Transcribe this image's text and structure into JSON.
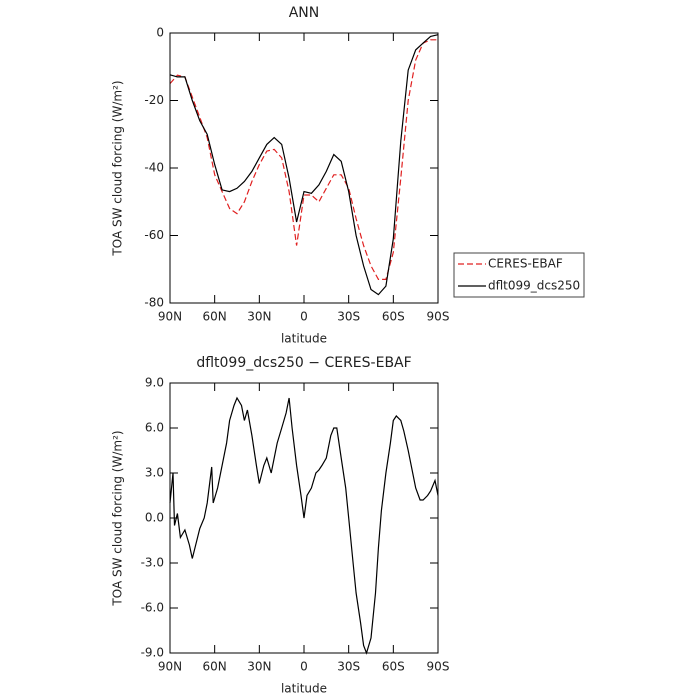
{
  "chart_data": [
    {
      "type": "line",
      "title": "ANN",
      "xlabel": "latitude",
      "ylabel": "TOA SW cloud forcing (W/m²)",
      "x": [
        90,
        85,
        80,
        75,
        70,
        65,
        60,
        55,
        50,
        45,
        40,
        35,
        30,
        25,
        20,
        15,
        10,
        5,
        0,
        -5,
        -10,
        -15,
        -20,
        -25,
        -30,
        -35,
        -40,
        -45,
        -50,
        -55,
        -60,
        -65,
        -70,
        -75,
        -80,
        -85,
        -90
      ],
      "series": [
        {
          "name": "CERES-EBAF",
          "color": "#e02020",
          "linestyle": "dashed",
          "values": [
            -15,
            -12.5,
            -13,
            -19,
            -25,
            -31,
            -42,
            -47,
            -52,
            -53.5,
            -50,
            -44,
            -39,
            -35,
            -34.5,
            -37,
            -47,
            -63,
            -48,
            -48,
            -50,
            -46,
            -42,
            -42,
            -46,
            -55,
            -63,
            -69,
            -73,
            -73,
            -65,
            -43,
            -20,
            -8,
            -3,
            -2,
            -2
          ]
        },
        {
          "name": "dflt099_dcs250",
          "color": "#000000",
          "linestyle": "solid",
          "values": [
            -12.4,
            -13,
            -13,
            -20,
            -26,
            -30,
            -39,
            -46.5,
            -47,
            -46,
            -44,
            -41,
            -37,
            -33,
            -31,
            -33,
            -43,
            -56,
            -47,
            -47.5,
            -45,
            -41,
            -36,
            -38,
            -47,
            -60,
            -69,
            -76,
            -77.5,
            -75,
            -61,
            -32,
            -11,
            -5,
            -3,
            -1,
            -0.5
          ]
        }
      ],
      "xlim": [
        90,
        -90
      ],
      "xticks": [
        {
          "value": 90,
          "label": "90N"
        },
        {
          "value": 60,
          "label": "60N"
        },
        {
          "value": 30,
          "label": "30N"
        },
        0,
        {
          "value": -30,
          "label": "30S"
        },
        {
          "value": -60,
          "label": "60S"
        },
        {
          "value": -90,
          "label": "90S"
        }
      ],
      "ylim": [
        -80,
        0
      ],
      "yticks": [
        -80,
        -60,
        -40,
        -20,
        0
      ],
      "legend": "right"
    },
    {
      "type": "line",
      "title": "dflt099_dcs250 − CERES-EBAF",
      "xlabel": "latitude",
      "ylabel": "TOA SW cloud forcing (W/m²)",
      "x": [
        90,
        88,
        87,
        85,
        83,
        80,
        77,
        75,
        72,
        70,
        67,
        65,
        62,
        61,
        58,
        55,
        52,
        50,
        47,
        45,
        42,
        40,
        38,
        35,
        32,
        30,
        27,
        25,
        22,
        20,
        18,
        15,
        12,
        10,
        8,
        5,
        2,
        0,
        -2,
        -5,
        -8,
        -10,
        -12,
        -15,
        -18,
        -20,
        -22,
        -25,
        -28,
        -30,
        -33,
        -35,
        -38,
        -40,
        -42,
        -45,
        -48,
        -50,
        -52,
        -55,
        -58,
        -60,
        -62,
        -65,
        -67,
        -70,
        -72,
        -75,
        -78,
        -80,
        -83,
        -85,
        -88,
        -90
      ],
      "series": [
        {
          "color": "#000000",
          "linestyle": "solid",
          "values": [
            1,
            3,
            -0.5,
            0.3,
            -1.3,
            -0.8,
            -1.8,
            -2.7,
            -1.5,
            -0.7,
            0,
            1,
            3.4,
            1,
            2,
            3.5,
            5,
            6.5,
            7.5,
            8,
            7.5,
            6.5,
            7.2,
            5.5,
            3.5,
            2.3,
            3.5,
            4,
            3,
            4,
            5,
            6,
            7,
            8,
            6,
            3.5,
            1.5,
            0,
            1.5,
            2,
            3,
            3.2,
            3.5,
            4,
            5.5,
            6,
            6,
            4,
            2,
            0,
            -3,
            -5,
            -7,
            -8.5,
            -9,
            -8,
            -5,
            -2,
            0.5,
            3,
            5,
            6.5,
            6.8,
            6.5,
            5.8,
            4.5,
            3.5,
            2,
            1.2,
            1.2,
            1.5,
            1.8,
            2.5,
            1.5
          ]
        }
      ],
      "xlim": [
        90,
        -90
      ],
      "xticks": [
        {
          "value": 90,
          "label": "90N"
        },
        {
          "value": 60,
          "label": "60N"
        },
        {
          "value": 30,
          "label": "30N"
        },
        0,
        {
          "value": -30,
          "label": "30S"
        },
        {
          "value": -60,
          "label": "60S"
        },
        {
          "value": -90,
          "label": "90S"
        }
      ],
      "ylim": [
        -9,
        9
      ],
      "yticks": [
        {
          "value": -9,
          "label": "-9.0"
        },
        {
          "value": -6,
          "label": "-6.0"
        },
        {
          "value": -3,
          "label": "-3.0"
        },
        {
          "value": 0,
          "label": "0.0"
        },
        {
          "value": 3,
          "label": "3.0"
        },
        {
          "value": 6,
          "label": "6.0"
        },
        {
          "value": 9,
          "label": "9.0"
        }
      ]
    }
  ]
}
